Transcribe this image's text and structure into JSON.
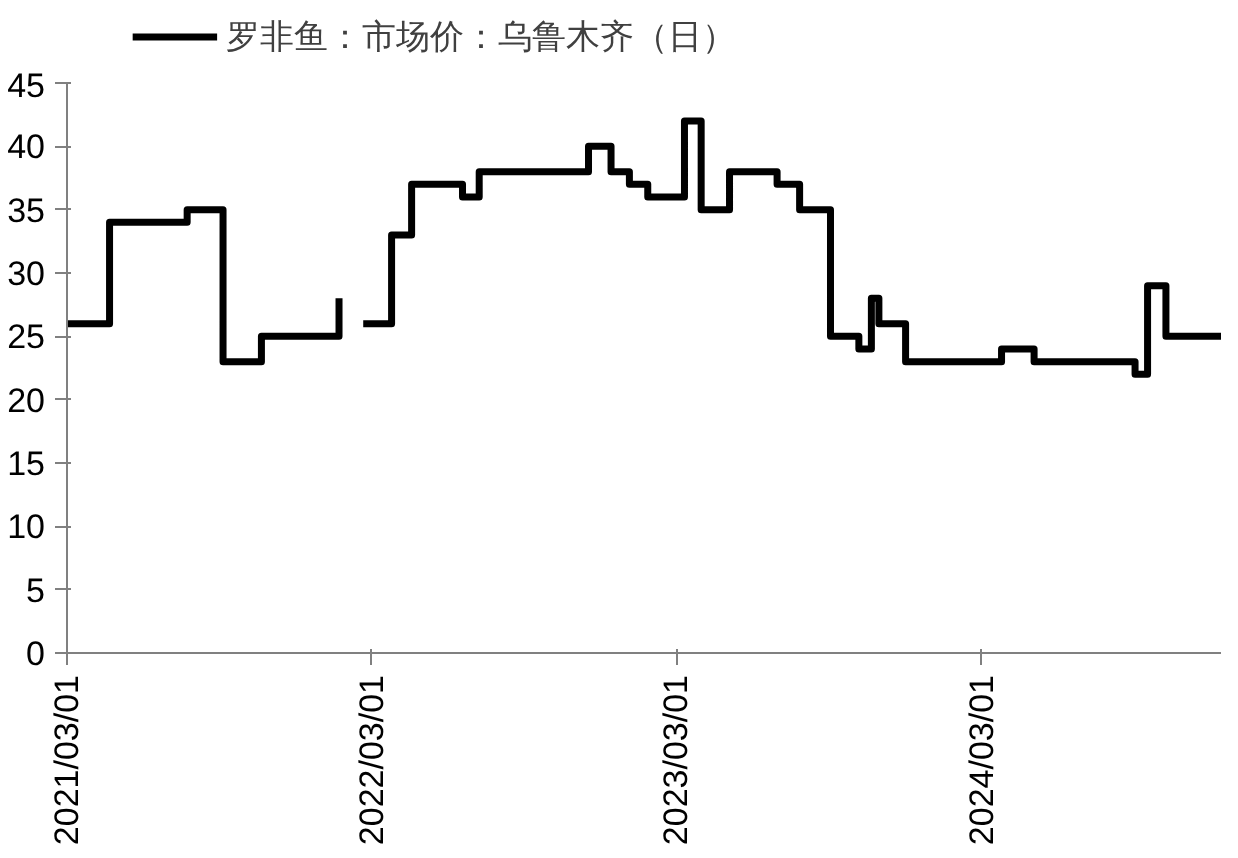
{
  "chart_data": {
    "type": "step",
    "x": [
      "2021-03-01",
      "2021-04-21",
      "2021-07-23",
      "2021-09-04",
      "2021-10-20",
      "2022-01-21",
      "2022-01-31",
      "2022-02-19",
      "2022-03-25",
      "2022-04-18",
      "2022-06-18",
      "2022-07-08",
      "2022-11-16",
      "2022-12-13",
      "2023-01-04",
      "2023-01-26",
      "2023-03-11",
      "2023-03-31",
      "2023-05-04",
      "2023-06-30",
      "2023-07-27",
      "2023-09-02",
      "2023-10-06",
      "2023-10-21",
      "2023-10-30",
      "2023-12-01",
      "2024-03-25",
      "2024-05-03",
      "2024-09-01",
      "2024-09-16",
      "2024-10-08",
      "2024-12-13"
    ],
    "series": [
      {
        "name": "罗非鱼：市场价：乌鲁木齐（日）",
        "color": "#000000",
        "values": [
          26,
          34,
          35,
          23,
          25,
          28,
          null,
          26,
          33,
          37,
          36,
          38,
          40,
          38,
          37,
          36,
          42,
          35,
          38,
          37,
          35,
          25,
          24,
          28,
          26,
          23,
          24,
          23,
          22,
          29,
          25,
          25
        ]
      }
    ],
    "xlim": [
      "2021-03-01",
      "2024-12-13"
    ],
    "xticks": [
      {
        "value": "2021-03-01",
        "label": "2021/03/01"
      },
      {
        "value": "2022-03-01",
        "label": "2022/03/01"
      },
      {
        "value": "2023-03-01",
        "label": "2023/03/01"
      },
      {
        "value": "2024-03-01",
        "label": "2024/03/01"
      }
    ],
    "ylim": [
      0,
      45
    ],
    "yticks": [
      0,
      5,
      10,
      15,
      20,
      25,
      30,
      35,
      40,
      45
    ],
    "grid": false,
    "legend": "top",
    "line_style": "solid"
  }
}
